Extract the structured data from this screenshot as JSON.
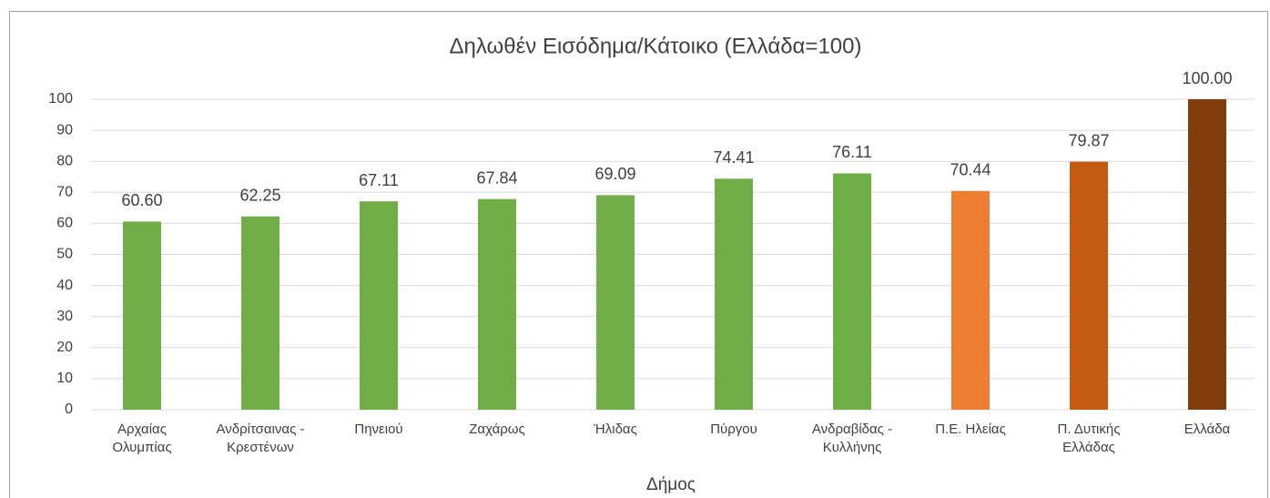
{
  "chart_data": {
    "type": "bar",
    "title": "Δηλωθέν Εισόδημα/Κάτοικο (Ελλάδα=100)",
    "x_label": "Δήμος",
    "categories": [
      "Αρχαίας Ολυμπίας",
      "Ανδρίτσαινας - Κρεστένων",
      "Πηνειού",
      "Ζαχάρως",
      "Ήλιδας",
      "Πύργου",
      "Ανδραβίδας - Κυλλήνης",
      "Π.Ε. Ηλείας",
      "Π. Δυτικής Ελλάδας",
      "Ελλάδα"
    ],
    "values": [
      60.6,
      62.25,
      67.11,
      67.84,
      69.09,
      74.41,
      76.11,
      70.44,
      79.87,
      100
    ],
    "value_labels": [
      "60.60",
      "62.25",
      "67.11",
      "67.84",
      "69.09",
      "74.41",
      "76.11",
      "70.44",
      "79.87",
      "100.00"
    ],
    "colors": [
      "#70ad47",
      "#70ad47",
      "#70ad47",
      "#70ad47",
      "#70ad47",
      "#70ad47",
      "#70ad47",
      "#ed7d31",
      "#c55a11",
      "#843c0c"
    ],
    "ylim": [
      0,
      100
    ],
    "yticks": [
      0,
      10,
      20,
      30,
      40,
      50,
      60,
      70,
      80,
      90,
      100
    ],
    "grid": true
  }
}
